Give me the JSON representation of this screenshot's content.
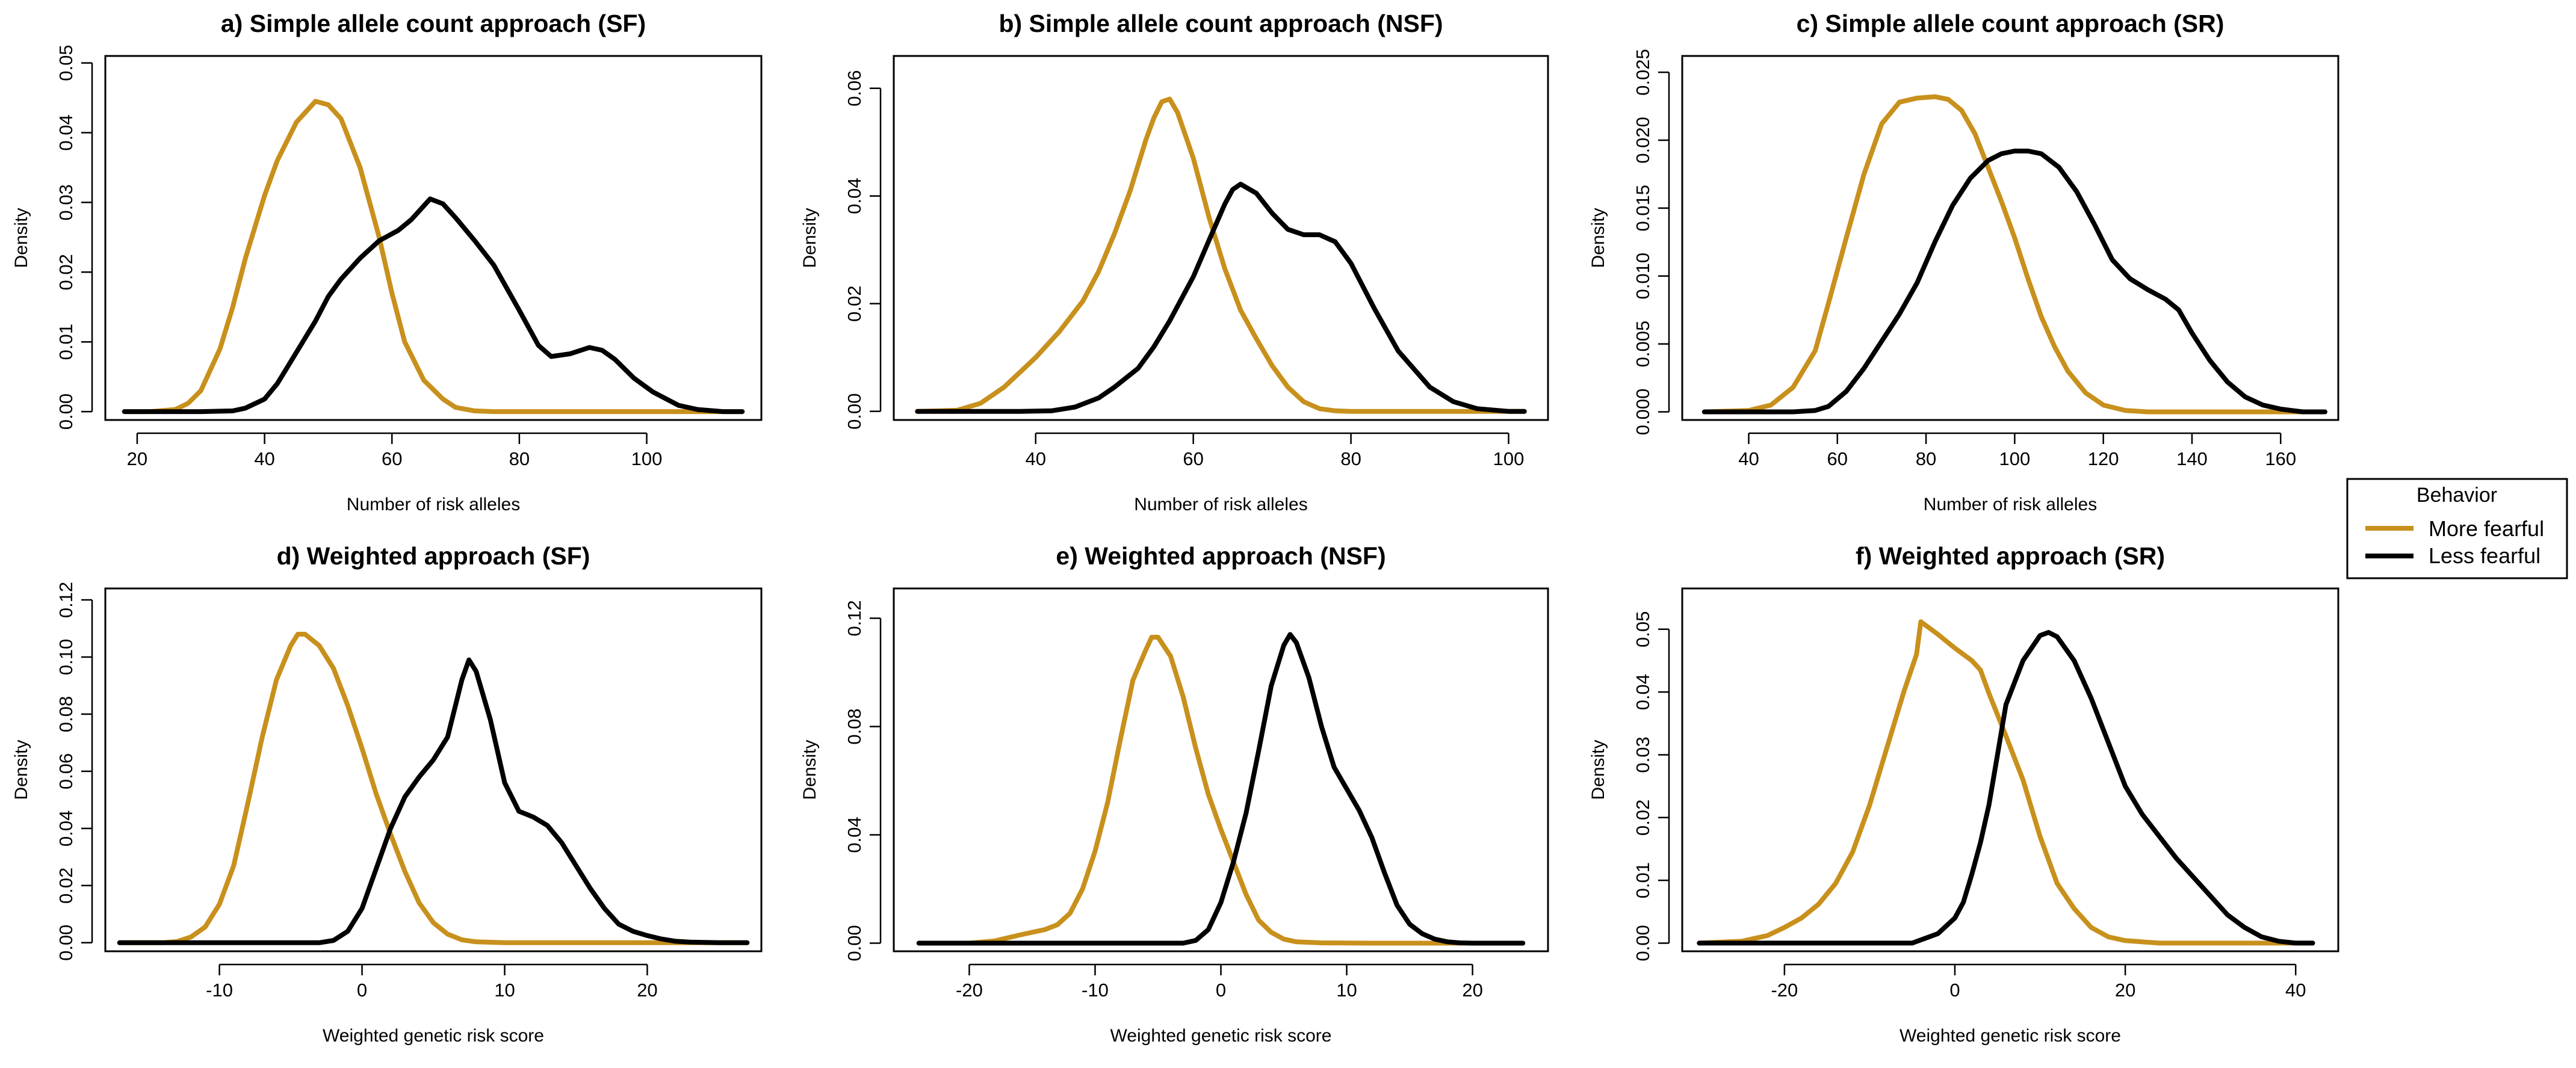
{
  "chart_data": [
    {
      "type": "line",
      "title": "a) Simple allele count approach (SF)",
      "xlabel": "Number of risk alleles",
      "ylabel": "Density",
      "xlim": [
        15,
        118
      ],
      "ylim": [
        -0.0012,
        0.051
      ],
      "xticks": [
        20,
        40,
        60,
        80,
        100
      ],
      "yticks": [
        0.0,
        0.01,
        0.02,
        0.03,
        0.04,
        0.05
      ],
      "ytick_labels": [
        "0.00",
        "0.01",
        "0.02",
        "0.03",
        "0.04",
        "0.05"
      ],
      "series": [
        {
          "name": "More fearful",
          "x": [
            18,
            22,
            26,
            28,
            30,
            33,
            35,
            37,
            40,
            42,
            45,
            48,
            50,
            52,
            55,
            58,
            60,
            62,
            65,
            68,
            70,
            73,
            76,
            80,
            85,
            95,
            105,
            115
          ],
          "y": [
            0,
            0,
            0.0003,
            0.0012,
            0.003,
            0.009,
            0.015,
            0.022,
            0.031,
            0.036,
            0.0415,
            0.0445,
            0.044,
            0.042,
            0.035,
            0.025,
            0.017,
            0.01,
            0.0045,
            0.0018,
            0.0006,
            0.0001,
            0,
            0,
            0,
            0,
            0,
            0
          ]
        },
        {
          "name": "Less fearful",
          "x": [
            18,
            30,
            35,
            37,
            40,
            42,
            45,
            48,
            50,
            52,
            55,
            58,
            61,
            63,
            66,
            68,
            70,
            73,
            76,
            80,
            83,
            85,
            88,
            91,
            93,
            95,
            98,
            101,
            105,
            108,
            112,
            115
          ],
          "y": [
            0,
            0,
            0.0001,
            0.0005,
            0.0018,
            0.004,
            0.0085,
            0.013,
            0.0165,
            0.019,
            0.022,
            0.0245,
            0.026,
            0.0275,
            0.0305,
            0.0298,
            0.0278,
            0.0245,
            0.021,
            0.0145,
            0.0095,
            0.0079,
            0.0083,
            0.0092,
            0.0088,
            0.0075,
            0.0048,
            0.0028,
            0.0009,
            0.0003,
            0,
            0
          ]
        }
      ]
    },
    {
      "type": "line",
      "title": "b) Simple allele count approach (NSF)",
      "xlabel": "Number of risk alleles",
      "ylabel": "Density",
      "xlim": [
        22,
        105
      ],
      "ylim": [
        -0.0016,
        0.066
      ],
      "xticks": [
        40,
        60,
        80,
        100
      ],
      "yticks": [
        0.0,
        0.02,
        0.04,
        0.06
      ],
      "ytick_labels": [
        "0.00",
        "0.02",
        "0.04",
        "0.06"
      ],
      "series": [
        {
          "name": "More fearful",
          "x": [
            25,
            30,
            33,
            36,
            40,
            43,
            46,
            48,
            50,
            52,
            54,
            55,
            56,
            57,
            58,
            60,
            62,
            64,
            66,
            68,
            70,
            72,
            74,
            76,
            78,
            80,
            85,
            95,
            102
          ],
          "y": [
            0,
            0.0002,
            0.0015,
            0.0045,
            0.01,
            0.0148,
            0.0205,
            0.026,
            0.033,
            0.041,
            0.0505,
            0.0545,
            0.0575,
            0.058,
            0.0555,
            0.047,
            0.036,
            0.0265,
            0.0188,
            0.0135,
            0.0085,
            0.0045,
            0.0018,
            0.0005,
            0.0001,
            0,
            0,
            0,
            0
          ]
        },
        {
          "name": "Less fearful",
          "x": [
            25,
            38,
            42,
            45,
            48,
            50,
            53,
            55,
            57,
            60,
            62,
            64,
            65,
            66,
            68,
            70,
            72,
            74,
            76,
            78,
            80,
            83,
            86,
            90,
            93,
            96,
            100,
            102
          ],
          "y": [
            0,
            0,
            0.0001,
            0.0008,
            0.0025,
            0.0045,
            0.008,
            0.012,
            0.0168,
            0.025,
            0.0318,
            0.0385,
            0.0412,
            0.0422,
            0.0405,
            0.0368,
            0.0338,
            0.0328,
            0.0328,
            0.0315,
            0.0275,
            0.019,
            0.0112,
            0.0045,
            0.0018,
            0.0005,
            0,
            0
          ]
        }
      ]
    },
    {
      "type": "line",
      "title": "c) Simple allele count approach (SR)",
      "xlabel": "Number of risk alleles",
      "ylabel": "Density",
      "xlim": [
        25,
        173
      ],
      "ylim": [
        -0.0006,
        0.0262
      ],
      "xticks": [
        40,
        60,
        80,
        100,
        120,
        140,
        160
      ],
      "yticks": [
        0.0,
        0.005,
        0.01,
        0.015,
        0.02,
        0.025
      ],
      "ytick_labels": [
        "0.000",
        "0.005",
        "0.010",
        "0.015",
        "0.020",
        "0.025"
      ],
      "series": [
        {
          "name": "More fearful",
          "x": [
            30,
            40,
            45,
            50,
            55,
            58,
            62,
            66,
            70,
            74,
            78,
            82,
            85,
            88,
            91,
            94,
            97,
            100,
            103,
            106,
            109,
            112,
            116,
            120,
            125,
            130,
            140,
            170
          ],
          "y": [
            0,
            0.0001,
            0.0005,
            0.0018,
            0.0045,
            0.008,
            0.0128,
            0.0175,
            0.0212,
            0.0228,
            0.0231,
            0.0232,
            0.023,
            0.0222,
            0.0205,
            0.018,
            0.0155,
            0.0128,
            0.0098,
            0.007,
            0.0048,
            0.003,
            0.0014,
            0.0005,
            0.0001,
            0,
            0,
            0
          ]
        },
        {
          "name": "Less fearful",
          "x": [
            30,
            50,
            55,
            58,
            62,
            66,
            70,
            74,
            78,
            82,
            86,
            90,
            94,
            97,
            100,
            103,
            106,
            110,
            114,
            118,
            122,
            126,
            130,
            134,
            137,
            140,
            144,
            148,
            152,
            156,
            160,
            165,
            170
          ],
          "y": [
            0,
            0,
            0.0001,
            0.0004,
            0.0015,
            0.0032,
            0.0052,
            0.0072,
            0.0095,
            0.0125,
            0.0152,
            0.0172,
            0.0185,
            0.019,
            0.0192,
            0.0192,
            0.019,
            0.018,
            0.0162,
            0.0138,
            0.0112,
            0.0098,
            0.009,
            0.0083,
            0.0075,
            0.0058,
            0.0038,
            0.0022,
            0.0011,
            0.0005,
            0.0002,
            0,
            0
          ]
        }
      ]
    },
    {
      "type": "line",
      "title": "d) Weighted approach (SF)",
      "xlabel": "Weighted genetic risk score",
      "ylabel": "Density",
      "xlim": [
        -18,
        28
      ],
      "ylim": [
        -0.003,
        0.124
      ],
      "xticks": [
        -10,
        0,
        10,
        20
      ],
      "yticks": [
        0.0,
        0.02,
        0.04,
        0.06,
        0.08,
        0.1,
        0.12
      ],
      "ytick_labels": [
        "0.00",
        "0.02",
        "0.04",
        "0.06",
        "0.08",
        "0.10",
        "0.12"
      ],
      "series": [
        {
          "name": "More fearful",
          "x": [
            -17,
            -14,
            -13,
            -12,
            -11,
            -10,
            -9,
            -8,
            -7,
            -6,
            -5,
            -4.5,
            -4,
            -3,
            -2,
            -1,
            0,
            1,
            2,
            3,
            4,
            5,
            6,
            7,
            8,
            10,
            15,
            27
          ],
          "y": [
            0,
            0,
            0.0004,
            0.002,
            0.0055,
            0.0135,
            0.027,
            0.049,
            0.072,
            0.092,
            0.104,
            0.108,
            0.108,
            0.104,
            0.096,
            0.083,
            0.068,
            0.052,
            0.038,
            0.025,
            0.014,
            0.007,
            0.003,
            0.001,
            0.0003,
            0,
            0,
            0
          ]
        },
        {
          "name": "Less fearful",
          "x": [
            -17,
            -3,
            -2,
            -1,
            0,
            1,
            2,
            3,
            4,
            5,
            6,
            7,
            7.5,
            8,
            9,
            10,
            11,
            12,
            13,
            14,
            15,
            16,
            17,
            18,
            19,
            20,
            21,
            22,
            23,
            25,
            27
          ],
          "y": [
            0,
            0,
            0.0008,
            0.004,
            0.012,
            0.026,
            0.04,
            0.051,
            0.058,
            0.064,
            0.072,
            0.092,
            0.099,
            0.095,
            0.078,
            0.056,
            0.046,
            0.044,
            0.041,
            0.035,
            0.027,
            0.019,
            0.012,
            0.0065,
            0.004,
            0.0025,
            0.0013,
            0.0005,
            0.0002,
            0,
            0
          ]
        }
      ]
    },
    {
      "type": "line",
      "title": "e) Weighted approach (NSF)",
      "xlabel": "Weighted genetic risk score",
      "ylabel": "Density",
      "xlim": [
        -26,
        26
      ],
      "ylim": [
        -0.003,
        0.131
      ],
      "xticks": [
        -20,
        -10,
        0,
        10,
        20
      ],
      "yticks": [
        0.0,
        0.04,
        0.08,
        0.12
      ],
      "ytick_labels": [
        "0.00",
        "0.04",
        "0.08",
        "0.12"
      ],
      "series": [
        {
          "name": "More fearful",
          "x": [
            -24,
            -20,
            -18,
            -16,
            -14,
            -13,
            -12,
            -11,
            -10,
            -9,
            -8,
            -7,
            -6,
            -5.5,
            -5,
            -4,
            -3,
            -2,
            -1,
            0,
            1,
            2,
            3,
            4,
            5,
            6,
            8,
            12,
            24
          ],
          "y": [
            0,
            0,
            0.0008,
            0.003,
            0.005,
            0.0068,
            0.011,
            0.02,
            0.034,
            0.052,
            0.075,
            0.097,
            0.108,
            0.113,
            0.113,
            0.106,
            0.091,
            0.072,
            0.055,
            0.042,
            0.03,
            0.018,
            0.0085,
            0.004,
            0.0015,
            0.0005,
            0.0001,
            0,
            0
          ]
        },
        {
          "name": "Less fearful",
          "x": [
            -24,
            -3,
            -2,
            -1,
            0,
            1,
            2,
            3,
            4,
            5,
            5.5,
            6,
            7,
            8,
            9,
            10,
            11,
            12,
            13,
            14,
            15,
            16,
            17,
            18,
            19,
            20,
            24
          ],
          "y": [
            0,
            0,
            0.001,
            0.005,
            0.015,
            0.03,
            0.048,
            0.071,
            0.095,
            0.11,
            0.114,
            0.111,
            0.098,
            0.08,
            0.065,
            0.057,
            0.049,
            0.039,
            0.026,
            0.014,
            0.007,
            0.0035,
            0.0015,
            0.0005,
            0.0001,
            0,
            0
          ]
        }
      ]
    },
    {
      "type": "line",
      "title": "f) Weighted approach (SR)",
      "xlabel": "Weighted genetic risk score",
      "ylabel": "Density",
      "xlim": [
        -32,
        45
      ],
      "ylim": [
        -0.0013,
        0.0565
      ],
      "xticks": [
        -20,
        0,
        20,
        40
      ],
      "yticks": [
        0.0,
        0.01,
        0.02,
        0.03,
        0.04,
        0.05
      ],
      "ytick_labels": [
        "0.00",
        "0.01",
        "0.02",
        "0.03",
        "0.04",
        "0.05"
      ],
      "series": [
        {
          "name": "More fearful",
          "x": [
            -30,
            -25,
            -22,
            -20,
            -18,
            -16,
            -14,
            -12,
            -10,
            -8,
            -6,
            -4.5,
            -4,
            -2,
            0,
            2,
            3,
            4,
            6,
            8,
            10,
            12,
            14,
            16,
            18,
            20,
            24,
            42
          ],
          "y": [
            0,
            0.0003,
            0.0012,
            0.0025,
            0.004,
            0.0062,
            0.0095,
            0.0145,
            0.022,
            0.031,
            0.04,
            0.046,
            0.0512,
            0.0492,
            0.047,
            0.045,
            0.0435,
            0.0398,
            0.033,
            0.026,
            0.017,
            0.0095,
            0.0055,
            0.0025,
            0.001,
            0.0004,
            0,
            0
          ]
        },
        {
          "name": "Less fearful",
          "x": [
            -30,
            -5,
            -2,
            0,
            1,
            2,
            3,
            4,
            5,
            6,
            8,
            10,
            11,
            12,
            14,
            16,
            18,
            20,
            22,
            24,
            26,
            28,
            30,
            32,
            34,
            36,
            38,
            40,
            42
          ],
          "y": [
            0,
            0,
            0.0015,
            0.004,
            0.0065,
            0.011,
            0.016,
            0.022,
            0.03,
            0.038,
            0.045,
            0.049,
            0.0495,
            0.0488,
            0.045,
            0.039,
            0.032,
            0.025,
            0.0205,
            0.017,
            0.0135,
            0.0105,
            0.0075,
            0.0045,
            0.0025,
            0.001,
            0.0003,
            0,
            0
          ]
        }
      ]
    }
  ],
  "legend": {
    "title": "Behavior",
    "items": [
      {
        "label": "More fearful",
        "color": "#C8901C"
      },
      {
        "label": "Less fearful",
        "color": "#000000"
      }
    ]
  },
  "colors": {
    "More fearful": "#C8901C",
    "Less fearful": "#000000",
    "axis": "#000000"
  }
}
